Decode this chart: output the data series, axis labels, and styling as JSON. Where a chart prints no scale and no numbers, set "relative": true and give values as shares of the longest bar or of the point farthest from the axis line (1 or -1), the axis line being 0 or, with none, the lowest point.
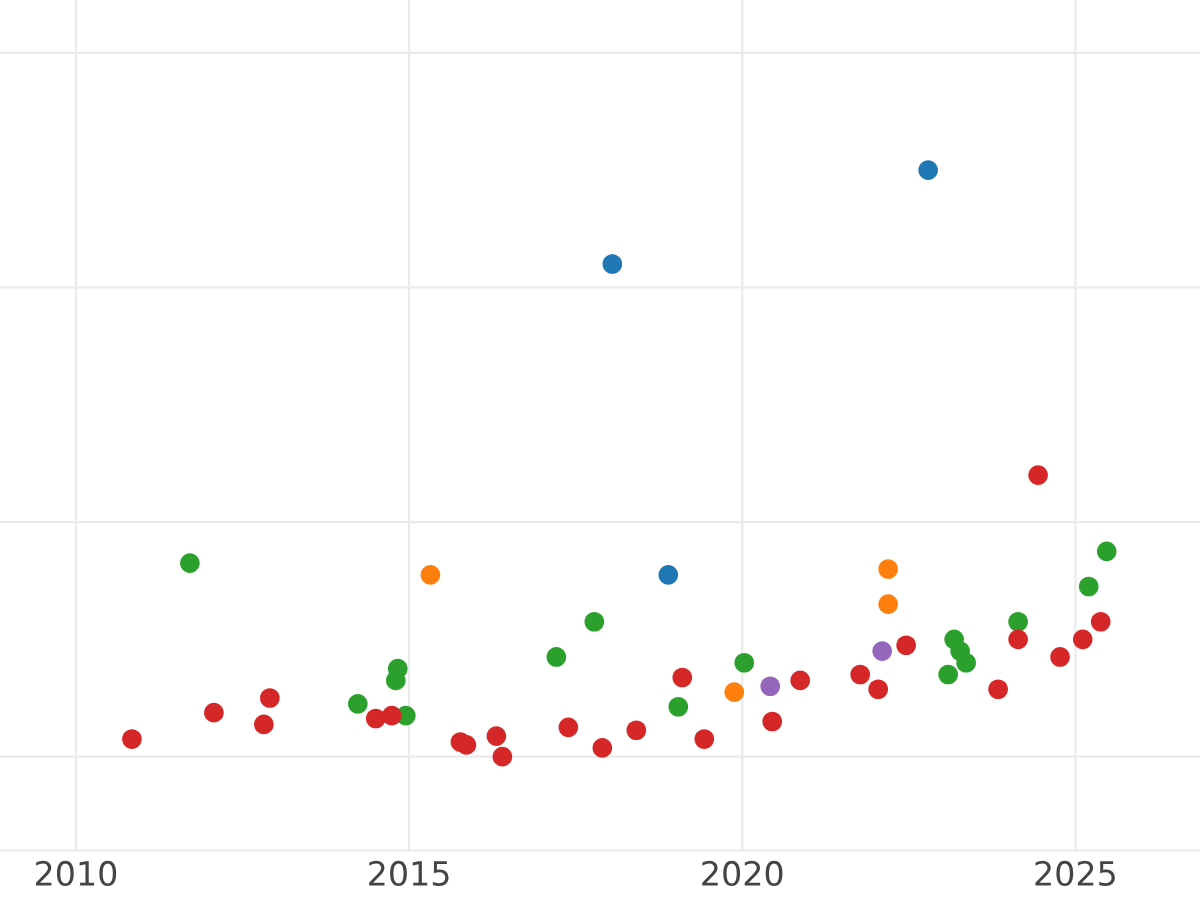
{
  "chart_data": {
    "type": "scatter",
    "relative": true,
    "grid": true,
    "marker": "circle",
    "xlim": [
      2008.86,
      2026.87
    ],
    "xticks": [
      2010,
      2015,
      2020,
      2025
    ],
    "series": [
      {
        "color": "#1f77b4",
        "x": [
          2018.05,
          2022.79,
          2018.89
        ],
        "values": [
          0.84,
          1.0,
          0.31
        ]
      },
      {
        "color": "#ff7f0e",
        "x": [
          2015.32,
          2022.19,
          2022.19,
          2019.88
        ],
        "values": [
          0.31,
          0.32,
          0.26,
          0.11
        ]
      },
      {
        "color": "#2ca02c",
        "x": [
          2011.71,
          2014.23,
          2014.83,
          2014.8,
          2014.95,
          2017.21,
          2017.78,
          2019.04,
          2020.03,
          2023.09,
          2023.18,
          2023.27,
          2023.36,
          2024.14,
          2025.2,
          2025.47
        ],
        "values": [
          0.33,
          0.09,
          0.15,
          0.13,
          0.07,
          0.17,
          0.23,
          0.085,
          0.16,
          0.14,
          0.2,
          0.18,
          0.16,
          0.23,
          0.29,
          0.35
        ]
      },
      {
        "color": "#9467bd",
        "x": [
          2020.42,
          2022.1
        ],
        "values": [
          0.12,
          0.18
        ]
      },
      {
        "color": "#d62728",
        "x": [
          2010.84,
          2012.07,
          2012.91,
          2012.82,
          2014.5,
          2014.74,
          2015.77,
          2015.86,
          2016.31,
          2016.4,
          2017.39,
          2017.9,
          2018.41,
          2019.1,
          2019.43,
          2020.45,
          2020.87,
          2021.77,
          2022.04,
          2022.46,
          2023.84,
          2024.14,
          2024.44,
          2024.77,
          2025.11,
          2025.38
        ],
        "values": [
          0.03,
          0.075,
          0.1,
          0.055,
          0.065,
          0.07,
          0.025,
          0.02,
          0.035,
          0.0,
          0.05,
          0.015,
          0.045,
          0.135,
          0.03,
          0.06,
          0.13,
          0.14,
          0.115,
          0.19,
          0.115,
          0.2,
          0.48,
          0.17,
          0.2,
          0.23
        ]
      }
    ]
  }
}
